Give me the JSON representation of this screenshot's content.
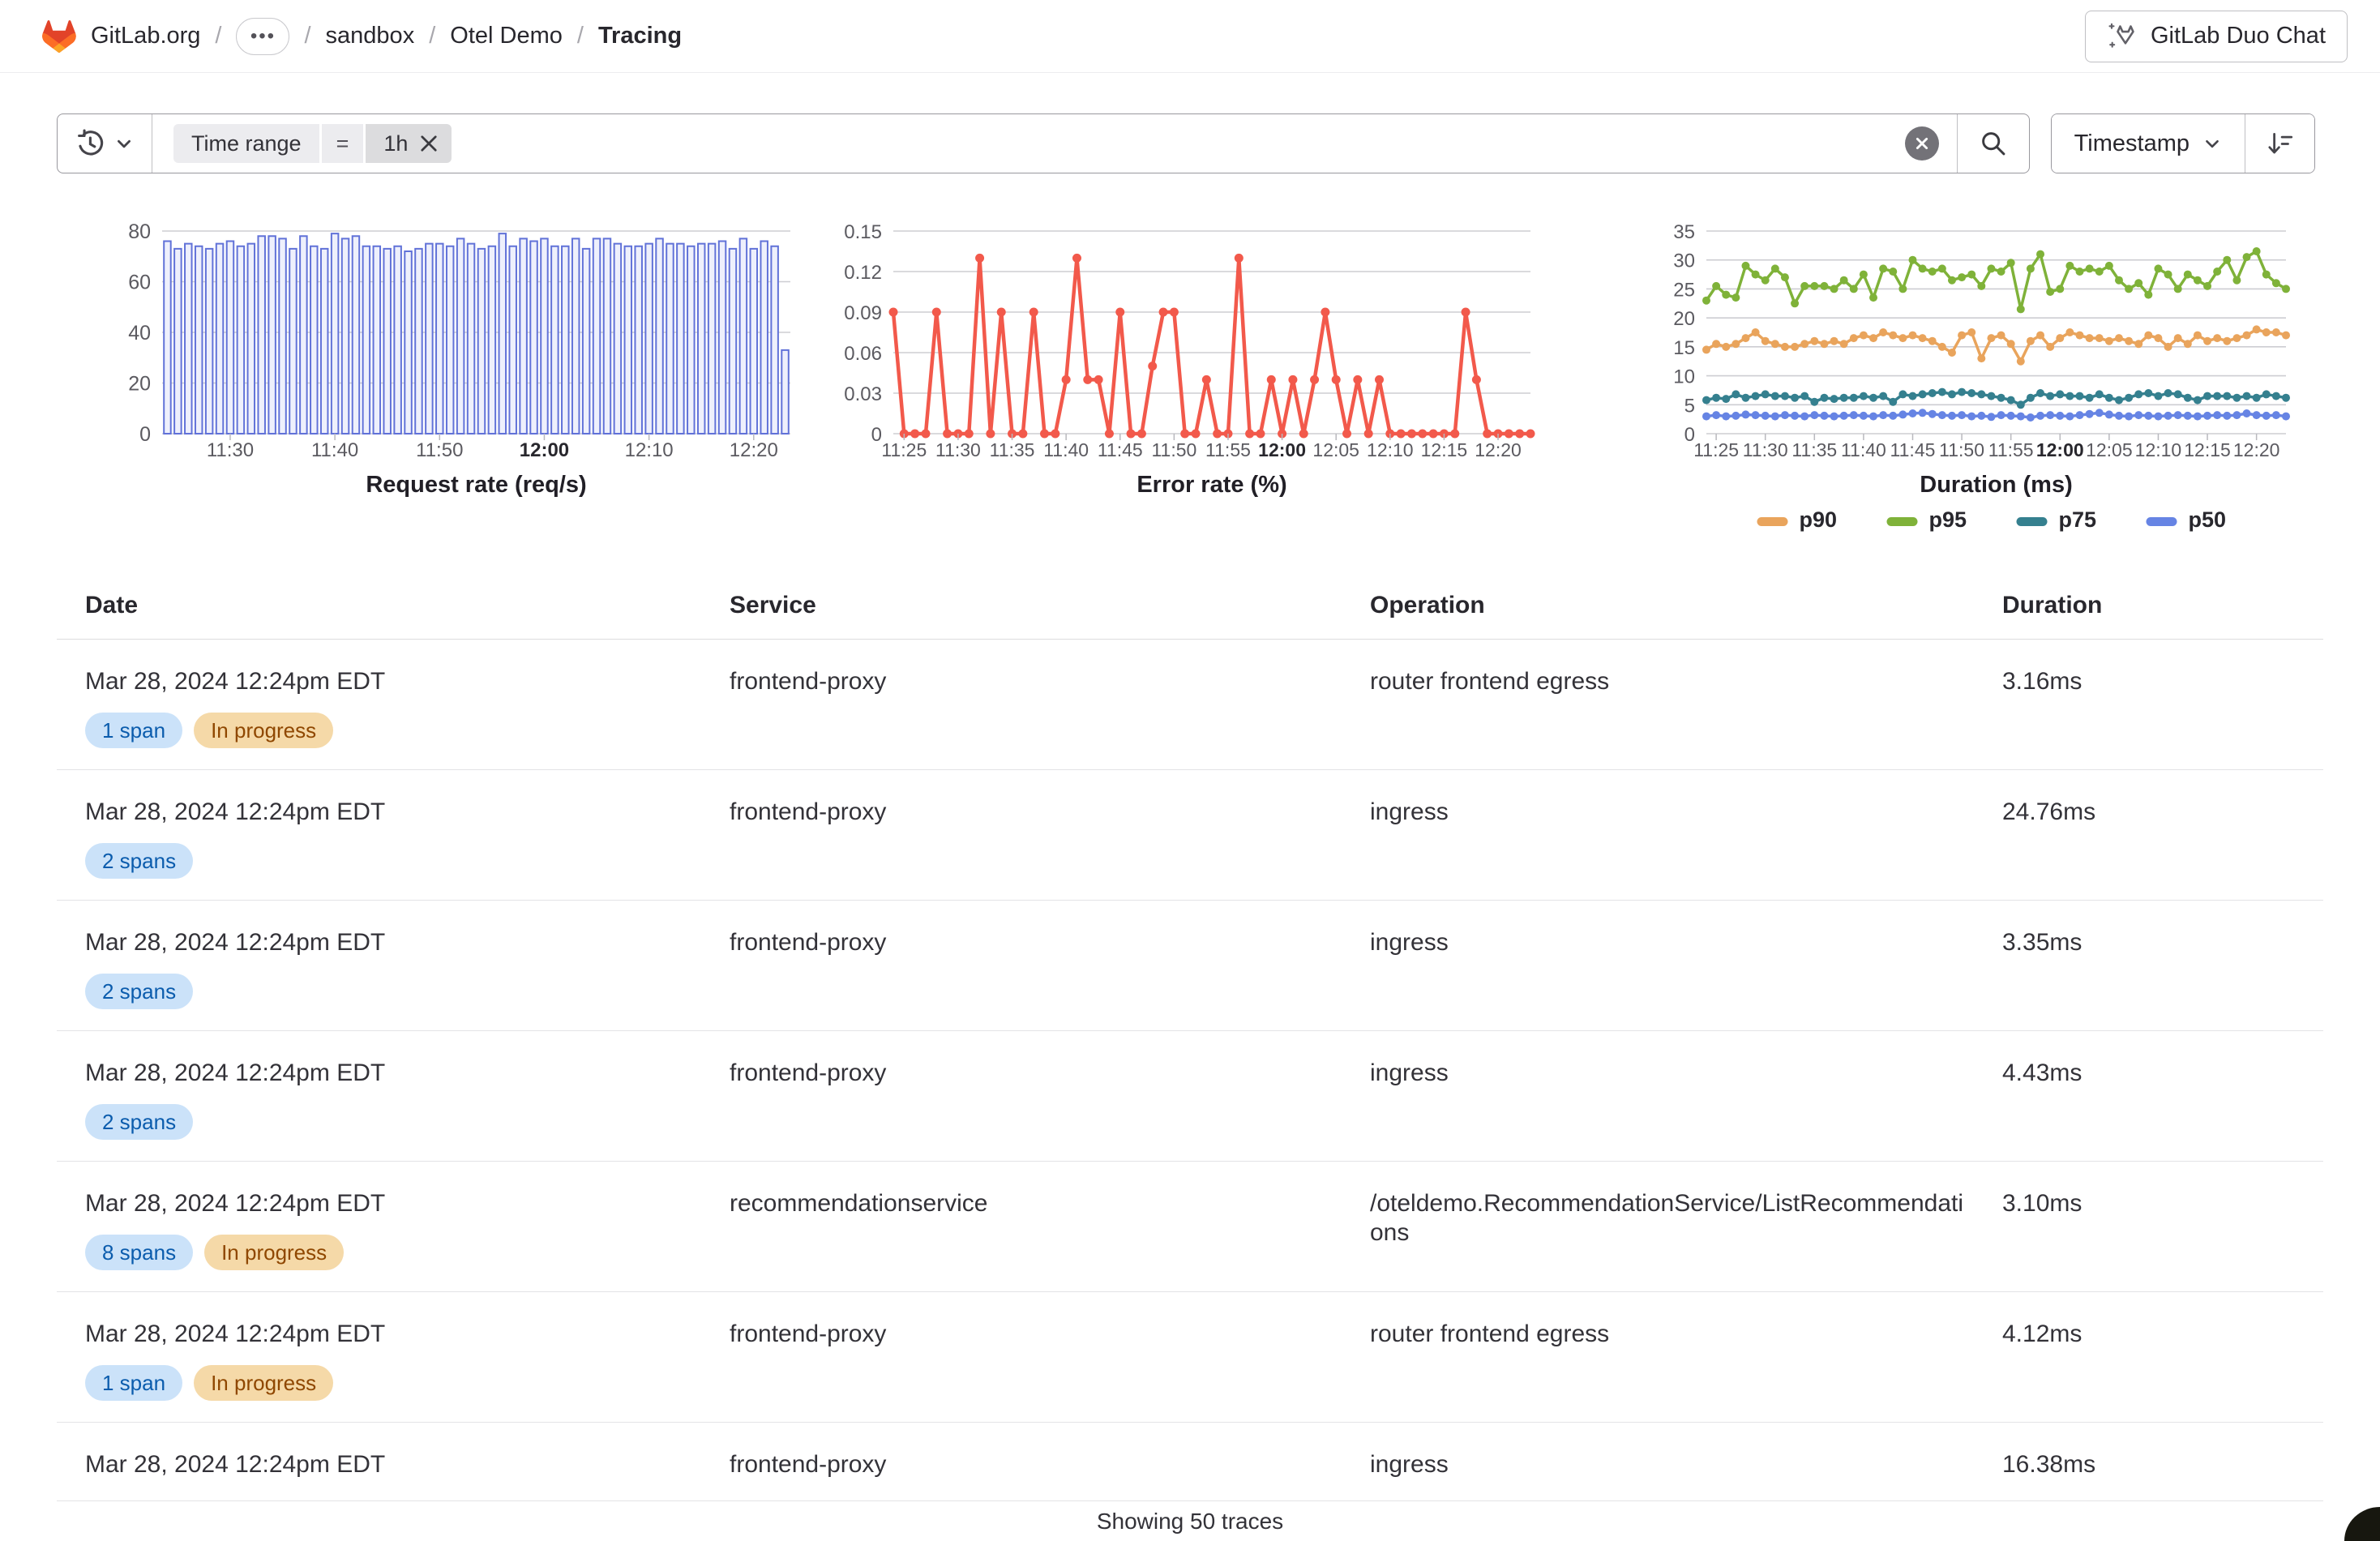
{
  "header": {
    "breadcrumb": [
      {
        "label": "GitLab.org",
        "type": "link"
      },
      {
        "label": "•••",
        "type": "ellipsis"
      },
      {
        "label": "sandbox",
        "type": "link"
      },
      {
        "label": "Otel Demo",
        "type": "link"
      },
      {
        "label": "Tracing",
        "type": "current"
      }
    ],
    "duo_chat_label": "GitLab Duo Chat"
  },
  "filter_bar": {
    "token": {
      "field": "Time range",
      "operator": "=",
      "value": "1h"
    },
    "sort_label": "Timestamp"
  },
  "chart_data": [
    {
      "type": "bar",
      "title": "Request rate (req/s)",
      "xlabel": "",
      "ylabel": "",
      "ylim": [
        0,
        80
      ],
      "yticks": [
        "0",
        "20",
        "40",
        "60",
        "80"
      ],
      "x_tick_labels": [
        "11:30",
        "11:40",
        "11:50",
        "12:00",
        "12:10",
        "12:20"
      ],
      "x_tick_indices": [
        6,
        16,
        26,
        36,
        46,
        56
      ],
      "bold_tick": "12:00",
      "grid": true,
      "values": [
        76,
        73,
        75,
        74,
        73,
        75,
        76,
        74,
        75,
        78,
        78,
        77,
        73,
        78,
        74,
        73,
        79,
        77,
        78,
        74,
        74,
        73,
        74,
        72,
        73,
        75,
        75,
        74,
        77,
        75,
        73,
        74,
        79,
        74,
        77,
        76,
        77,
        74,
        74,
        77,
        73,
        77,
        77,
        75,
        74,
        74,
        75,
        77,
        75,
        75,
        74,
        75,
        75,
        76,
        73,
        77,
        73,
        76,
        74,
        33
      ],
      "bar_fill": "#eef0fc",
      "bar_stroke": "#6172d8"
    },
    {
      "type": "line",
      "title": "Error rate (%)",
      "xlabel": "",
      "ylabel": "",
      "ylim": [
        0,
        0.15
      ],
      "yticks": [
        "0",
        "0.03",
        "0.06",
        "0.09",
        "0.12",
        "0.15"
      ],
      "x_tick_labels": [
        "11:25",
        "11:30",
        "11:35",
        "11:40",
        "11:45",
        "11:50",
        "11:55",
        "12:00",
        "12:05",
        "12:10",
        "12:15",
        "12:20"
      ],
      "x_tick_indices": [
        1,
        6,
        11,
        16,
        21,
        26,
        31,
        36,
        41,
        46,
        51,
        56
      ],
      "bold_tick": "12:00",
      "grid": true,
      "series": [
        {
          "name": "error rate",
          "color": "#f2594b",
          "values": [
            0.09,
            0,
            0,
            0,
            0.09,
            0,
            0,
            0,
            0.13,
            0,
            0.09,
            0,
            0,
            0.09,
            0,
            0,
            0.04,
            0.13,
            0.04,
            0.04,
            0,
            0.09,
            0,
            0,
            0.05,
            0.09,
            0.09,
            0,
            0,
            0.04,
            0,
            0,
            0.13,
            0,
            0,
            0.04,
            0,
            0.04,
            0,
            0.04,
            0.09,
            0.04,
            0,
            0.04,
            0,
            0.04,
            0,
            0,
            0,
            0,
            0,
            0,
            0,
            0.09,
            0.04,
            0,
            0,
            0,
            0,
            0
          ]
        }
      ]
    },
    {
      "type": "line",
      "title": "Duration (ms)",
      "xlabel": "",
      "ylabel": "",
      "ylim": [
        0,
        35
      ],
      "yticks": [
        "0",
        "5",
        "10",
        "15",
        "20",
        "25",
        "30",
        "35"
      ],
      "x_tick_labels": [
        "11:25",
        "11:30",
        "11:35",
        "11:40",
        "11:45",
        "11:50",
        "11:55",
        "12:00",
        "12:05",
        "12:10",
        "12:15",
        "12:20"
      ],
      "x_tick_indices": [
        1,
        6,
        11,
        16,
        21,
        26,
        31,
        36,
        41,
        46,
        51,
        56
      ],
      "bold_tick": "12:00",
      "grid": true,
      "legend": [
        "p90",
        "p95",
        "p75",
        "p50"
      ],
      "legend_position": "bottom",
      "series": [
        {
          "name": "p90",
          "color": "#e9a45c",
          "values": [
            14.5,
            15.5,
            15,
            15.5,
            16.5,
            17.5,
            16,
            15.5,
            15,
            15,
            15.5,
            16,
            15.5,
            16,
            15.5,
            16.5,
            17,
            16.5,
            17.5,
            17,
            16.5,
            17,
            16.5,
            16,
            15,
            14,
            17,
            17.5,
            13,
            16.5,
            17,
            15.5,
            12.5,
            16,
            17,
            15,
            16.5,
            17.5,
            17,
            16.5,
            16.5,
            16,
            16.5,
            16,
            15.5,
            17,
            16.5,
            15,
            16.5,
            15.5,
            17,
            16,
            16.5,
            16,
            16.5,
            17,
            18,
            17.5,
            17.5,
            17
          ]
        },
        {
          "name": "p95",
          "color": "#7fb239",
          "values": [
            23,
            25.5,
            24,
            23.5,
            29,
            27.5,
            26.5,
            28.5,
            27,
            22.5,
            25.5,
            25.5,
            25.5,
            25,
            26.5,
            25,
            27.5,
            23.5,
            28.5,
            28,
            25,
            30,
            28.5,
            28,
            28.5,
            26.5,
            27,
            27.5,
            25.5,
            28.5,
            28,
            29.5,
            21.5,
            28.5,
            31,
            24.5,
            25,
            29,
            28,
            28.5,
            28,
            29,
            26.5,
            25,
            26,
            24,
            28.5,
            27.5,
            25,
            27.5,
            26.5,
            25.5,
            28,
            30,
            26.5,
            30.5,
            31.5,
            27.5,
            26,
            25
          ]
        },
        {
          "name": "p75",
          "color": "#35808f",
          "values": [
            5.8,
            6.2,
            6,
            6.8,
            6.2,
            6.5,
            6.8,
            6.5,
            6.5,
            6.2,
            6.5,
            5.5,
            6.2,
            6,
            6.2,
            6.2,
            6.5,
            6.2,
            6.5,
            5.5,
            6.8,
            6.5,
            6.8,
            7,
            7.2,
            6.8,
            7.2,
            7,
            6.8,
            6.5,
            6.2,
            5.8,
            5,
            6.2,
            7,
            6.5,
            6.8,
            6.5,
            6.5,
            6.2,
            6.8,
            6.2,
            5.8,
            6.2,
            6.8,
            7,
            6.5,
            7,
            6.8,
            6.2,
            5.8,
            6.5,
            6.5,
            6.5,
            6.2,
            6.5,
            6.2,
            6.8,
            6.5,
            6.2
          ]
        },
        {
          "name": "p50",
          "color": "#6684e4",
          "values": [
            3,
            3.2,
            3,
            3.1,
            3.3,
            3.2,
            3.1,
            3,
            3.2,
            3.1,
            3,
            3.2,
            3.1,
            3,
            3.1,
            3.2,
            3.1,
            3,
            3.2,
            3.1,
            3.3,
            3.5,
            3.6,
            3.4,
            3.2,
            3.1,
            3.2,
            3,
            3.1,
            2.9,
            3.2,
            3.1,
            3,
            2.8,
            3.1,
            3.2,
            3.1,
            3,
            3.2,
            3.4,
            3.6,
            3.3,
            3.1,
            3,
            3.2,
            3.1,
            3,
            3.1,
            3.2,
            3.1,
            3,
            3.1,
            3.2,
            3.1,
            3.2,
            3.5,
            3.2,
            3.1,
            3.2,
            3
          ]
        }
      ]
    }
  ],
  "table": {
    "columns": [
      "Date",
      "Service",
      "Operation",
      "Duration"
    ],
    "rows": [
      {
        "date": "Mar 28, 2024 12:24pm EDT",
        "badges": [
          {
            "label": "1 span",
            "type": "info"
          },
          {
            "label": "In progress",
            "type": "warning"
          }
        ],
        "service": "frontend-proxy",
        "operation": "router frontend egress",
        "duration": "3.16ms"
      },
      {
        "date": "Mar 28, 2024 12:24pm EDT",
        "badges": [
          {
            "label": "2 spans",
            "type": "info"
          }
        ],
        "service": "frontend-proxy",
        "operation": "ingress",
        "duration": "24.76ms"
      },
      {
        "date": "Mar 28, 2024 12:24pm EDT",
        "badges": [
          {
            "label": "2 spans",
            "type": "info"
          }
        ],
        "service": "frontend-proxy",
        "operation": "ingress",
        "duration": "3.35ms"
      },
      {
        "date": "Mar 28, 2024 12:24pm EDT",
        "badges": [
          {
            "label": "2 spans",
            "type": "info"
          }
        ],
        "service": "frontend-proxy",
        "operation": "ingress",
        "duration": "4.43ms"
      },
      {
        "date": "Mar 28, 2024 12:24pm EDT",
        "badges": [
          {
            "label": "8 spans",
            "type": "info"
          },
          {
            "label": "In progress",
            "type": "warning"
          }
        ],
        "service": "recommendationservice",
        "operation": "/oteldemo.RecommendationService/ListRecommendations",
        "duration": "3.10ms"
      },
      {
        "date": "Mar 28, 2024 12:24pm EDT",
        "badges": [
          {
            "label": "1 span",
            "type": "info"
          },
          {
            "label": "In progress",
            "type": "warning"
          }
        ],
        "service": "frontend-proxy",
        "operation": "router frontend egress",
        "duration": "4.12ms"
      },
      {
        "date": "Mar 28, 2024 12:24pm EDT",
        "badges": [],
        "service": "frontend-proxy",
        "operation": "ingress",
        "duration": "16.38ms"
      }
    ]
  },
  "footer": {
    "summary": "Showing 50 traces"
  },
  "colors": {
    "badge_info_bg": "#cbe2f9",
    "badge_info_text": "#0b5cad",
    "badge_warning_bg": "#f5d9a8",
    "badge_warning_text": "#8f4700",
    "gridline": "#cdcdd2",
    "tick_text": "#5b5a60",
    "bold_tick_text": "#28272d"
  }
}
